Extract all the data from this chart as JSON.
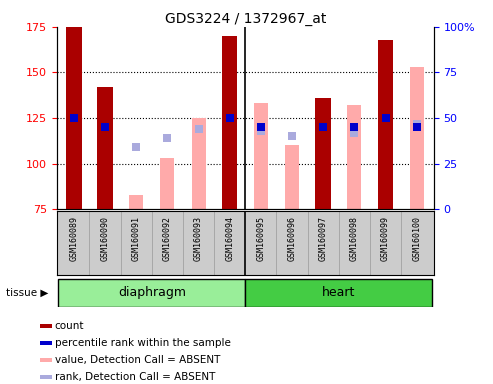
{
  "title": "GDS3224 / 1372967_at",
  "samples": [
    "GSM160089",
    "GSM160090",
    "GSM160091",
    "GSM160092",
    "GSM160093",
    "GSM160094",
    "GSM160095",
    "GSM160096",
    "GSM160097",
    "GSM160098",
    "GSM160099",
    "GSM160100"
  ],
  "count_values": [
    175,
    142,
    null,
    null,
    null,
    170,
    null,
    null,
    136,
    null,
    168,
    null
  ],
  "count_color": "#aa0000",
  "pink_bar_values": [
    null,
    null,
    83,
    103,
    125,
    null,
    133,
    110,
    null,
    132,
    null,
    153
  ],
  "pink_color": "#ffaaaa",
  "blue_dot_values": [
    125,
    120,
    null,
    null,
    null,
    125,
    120,
    null,
    120,
    120,
    125,
    120
  ],
  "blue_dot_color": "#0000cc",
  "lavender_dot_values": [
    null,
    null,
    109,
    114,
    119,
    null,
    118,
    115,
    null,
    117,
    null,
    122
  ],
  "lavender_color": "#aaaadd",
  "ylim_left": [
    75,
    175
  ],
  "ylim_right": [
    0,
    100
  ],
  "yticks_left": [
    75,
    100,
    125,
    150,
    175
  ],
  "yticks_right": [
    0,
    25,
    50,
    75,
    100
  ],
  "tissue_groups": [
    {
      "label": "diaphragm",
      "start": 0,
      "end": 6,
      "color": "#99ee99"
    },
    {
      "label": "heart",
      "start": 6,
      "end": 12,
      "color": "#44cc44"
    }
  ],
  "tissue_label": "tissue",
  "bar_width": 0.5,
  "pink_bar_width": 0.45,
  "dot_size": 35,
  "legend_items": [
    {
      "color": "#aa0000",
      "label": "count"
    },
    {
      "color": "#0000cc",
      "label": "percentile rank within the sample"
    },
    {
      "color": "#ffaaaa",
      "label": "value, Detection Call = ABSENT"
    },
    {
      "color": "#aaaadd",
      "label": "rank, Detection Call = ABSENT"
    }
  ]
}
